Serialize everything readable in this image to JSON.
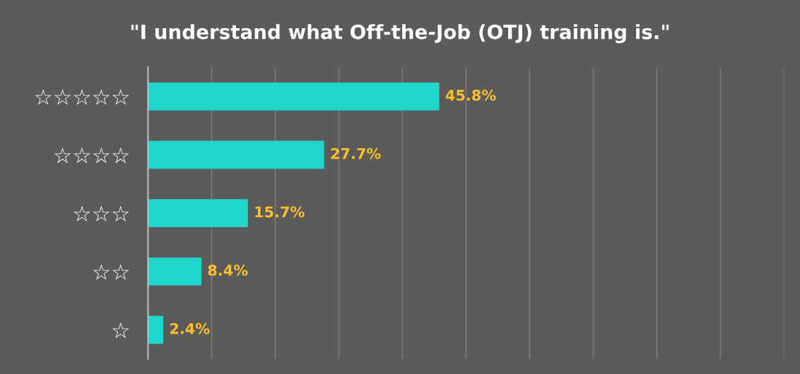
{
  "chart_data": {
    "type": "bar",
    "orientation": "horizontal",
    "title": "\"I understand what Off-the-Job (OTJ) training is.\"",
    "categories": [
      "☆☆☆☆☆",
      "☆☆☆☆",
      "☆☆☆",
      "☆☆",
      "☆"
    ],
    "values": [
      45.8,
      27.7,
      15.7,
      8.4,
      2.4
    ],
    "value_labels": [
      "45.8%",
      "27.7%",
      "15.7%",
      "8.4%",
      "2.4%"
    ],
    "color": "#1ed6cc",
    "xlim": [
      0,
      100
    ],
    "xticks": [
      {
        "value": 0,
        "label": null
      },
      {
        "value": 10,
        "label": null
      },
      {
        "value": 20,
        "label": null
      },
      {
        "value": 30,
        "label": null
      },
      {
        "value": 40,
        "label": null
      },
      {
        "value": 50,
        "label": null
      },
      {
        "value": 60,
        "label": null
      },
      {
        "value": 70,
        "label": null
      },
      {
        "value": 80,
        "label": null
      },
      {
        "value": 90,
        "label": null
      },
      {
        "value": 100,
        "label": null
      }
    ],
    "grid": "x",
    "tick_labels": "y",
    "legend": false
  }
}
